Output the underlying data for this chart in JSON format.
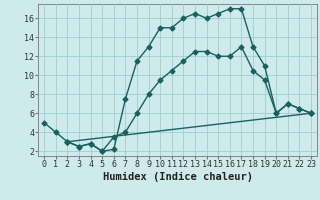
{
  "xlabel": "Humidex (Indice chaleur)",
  "bg_color": "#ceeaea",
  "grid_color": "#9ecece",
  "line_color": "#1a6060",
  "xlim": [
    -0.5,
    23.5
  ],
  "ylim": [
    1.5,
    17.5
  ],
  "xticks": [
    0,
    1,
    2,
    3,
    4,
    5,
    6,
    7,
    8,
    9,
    10,
    11,
    12,
    13,
    14,
    15,
    16,
    17,
    18,
    19,
    20,
    21,
    22,
    23
  ],
  "yticks": [
    2,
    4,
    6,
    8,
    10,
    12,
    14,
    16
  ],
  "curve1_x": [
    0,
    1,
    2,
    3,
    4,
    5,
    6,
    7,
    8,
    9,
    10,
    11,
    12,
    13,
    14,
    15,
    16,
    17,
    18,
    19,
    20,
    21,
    22,
    23
  ],
  "curve1_y": [
    5.0,
    4.0,
    3.0,
    2.5,
    2.8,
    2.0,
    2.2,
    7.5,
    11.5,
    13.0,
    15.0,
    15.0,
    16.0,
    16.5,
    16.0,
    16.5,
    17.0,
    17.0,
    13.0,
    11.0,
    6.0,
    7.0,
    6.5,
    6.0
  ],
  "curve2_x": [
    2,
    3,
    4,
    5,
    6,
    7,
    8,
    9,
    10,
    11,
    12,
    13,
    14,
    15,
    16,
    17,
    18,
    19,
    20,
    21,
    22,
    23
  ],
  "curve2_y": [
    3.0,
    2.5,
    2.8,
    2.0,
    3.5,
    4.0,
    6.0,
    8.0,
    9.5,
    10.5,
    11.5,
    12.5,
    12.5,
    12.0,
    12.0,
    13.0,
    10.5,
    9.5,
    6.0,
    7.0,
    6.5,
    6.0
  ],
  "curve3_x": [
    2,
    23
  ],
  "curve3_y": [
    3.0,
    6.0
  ],
  "marker_style": "D",
  "marker_size": 2.5,
  "linewidth": 1.0,
  "xlabel_fontsize": 7.5,
  "tick_fontsize": 6.0
}
